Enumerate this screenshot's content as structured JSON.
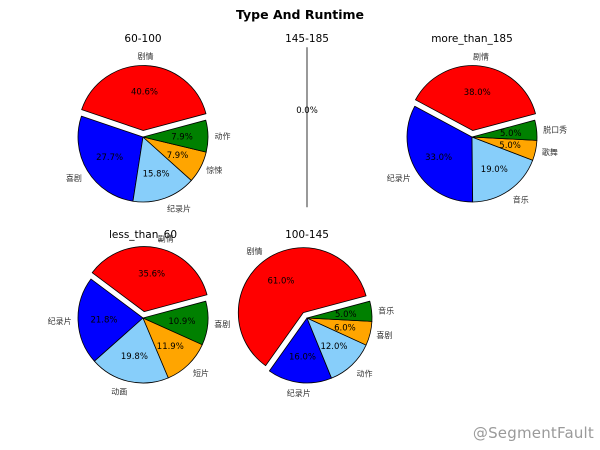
{
  "figure": {
    "title": "Type And Runtime",
    "watermark": "@SegmentFault"
  },
  "chart_data": [
    {
      "type": "pie",
      "title": "60-100",
      "slices": [
        {
          "label": "剧情",
          "value": 40.6,
          "display": "40.6%",
          "color": "#ff0000",
          "explode": true
        },
        {
          "label": "喜剧",
          "value": 27.7,
          "display": "27.7%",
          "color": "#0000ff",
          "explode": false
        },
        {
          "label": "纪录片",
          "value": 15.8,
          "display": "15.8%",
          "color": "#87cefa",
          "explode": false
        },
        {
          "label": "惊悚",
          "value": 7.9,
          "display": "7.9%",
          "color": "#ffa500",
          "explode": false
        },
        {
          "label": "动作",
          "value": 7.9,
          "display": "7.9%",
          "color": "#008000",
          "explode": false
        }
      ]
    },
    {
      "type": "pie",
      "title": "145-185",
      "degenerate": true,
      "slices": [
        {
          "label": "",
          "value": 0.0,
          "display": "0.0%",
          "color": "#ff0000",
          "explode": false
        }
      ]
    },
    {
      "type": "pie",
      "title": "more_than_185",
      "slices": [
        {
          "label": "剧情",
          "value": 38.0,
          "display": "38.0%",
          "color": "#ff0000",
          "explode": true
        },
        {
          "label": "纪录片",
          "value": 33.0,
          "display": "33.0%",
          "color": "#0000ff",
          "explode": false
        },
        {
          "label": "音乐",
          "value": 19.0,
          "display": "19.0%",
          "color": "#87cefa",
          "explode": false
        },
        {
          "label": "歌舞",
          "value": 5.0,
          "display": "5.0%",
          "color": "#ffa500",
          "explode": false
        },
        {
          "label": "脱口秀",
          "value": 5.0,
          "display": "5.0%",
          "color": "#008000",
          "explode": false
        }
      ]
    },
    {
      "type": "pie",
      "title": "less_than_60",
      "slices": [
        {
          "label": "剧情",
          "value": 35.6,
          "display": "35.6%",
          "color": "#ff0000",
          "explode": true
        },
        {
          "label": "纪录片",
          "value": 21.8,
          "display": "21.8%",
          "color": "#0000ff",
          "explode": false
        },
        {
          "label": "动画",
          "value": 19.8,
          "display": "19.8%",
          "color": "#87cefa",
          "explode": false
        },
        {
          "label": "短片",
          "value": 11.9,
          "display": "11.9%",
          "color": "#ffa500",
          "explode": false
        },
        {
          "label": "喜剧",
          "value": 10.9,
          "display": "10.9%",
          "color": "#008000",
          "explode": false
        }
      ]
    },
    {
      "type": "pie",
      "title": "100-145",
      "slices": [
        {
          "label": "剧情",
          "value": 61.0,
          "display": "61.0%",
          "color": "#ff0000",
          "explode": true
        },
        {
          "label": "纪录片",
          "value": 16.0,
          "display": "16.0%",
          "color": "#0000ff",
          "explode": false
        },
        {
          "label": "动作",
          "value": 12.0,
          "display": "12.0%",
          "color": "#87cefa",
          "explode": false
        },
        {
          "label": "喜剧",
          "value": 6.0,
          "display": "6.0%",
          "color": "#ffa500",
          "explode": false
        },
        {
          "label": "音乐",
          "value": 5.0,
          "display": "5.0%",
          "color": "#008000",
          "explode": false
        }
      ]
    }
  ]
}
